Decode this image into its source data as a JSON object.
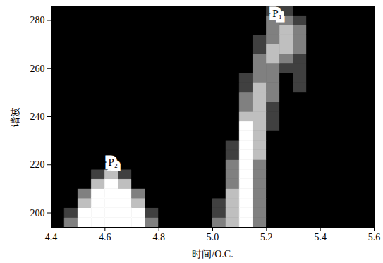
{
  "chart_data": {
    "type": "heatmap",
    "xlabel": "时间/O.C.",
    "ylabel": "谐波",
    "xlim": [
      4.4,
      5.6
    ],
    "ylim": [
      194,
      286
    ],
    "xticks": [
      4.4,
      4.6,
      4.8,
      {
        "value": 5,
        "label": "5.0"
      },
      5.2,
      5.4,
      5.6
    ],
    "yticks": [
      200,
      220,
      240,
      260,
      280
    ],
    "color": "#ffffff",
    "zlim": [
      0,
      4
    ],
    "x_bins": [
      4.4,
      4.45,
      4.5,
      4.55,
      4.6,
      4.65,
      4.7,
      4.75,
      4.8,
      4.85,
      4.9,
      4.95,
      5.0,
      5.05,
      5.1,
      5.15,
      5.2,
      5.25,
      5.3,
      5.35,
      5.4,
      5.45,
      5.5,
      5.55,
      5.6
    ],
    "y_bins": [
      194,
      198,
      202,
      206,
      210,
      214,
      218,
      222,
      226,
      230,
      234,
      238,
      242,
      246,
      250,
      254,
      258,
      262,
      266,
      270,
      274,
      278,
      282,
      286
    ],
    "cells": [
      [
        0,
        2,
        4,
        4,
        4,
        4,
        4,
        2,
        0,
        0,
        0,
        0,
        2,
        3,
        4,
        2,
        0,
        0,
        0,
        0,
        0,
        0,
        0,
        0
      ],
      [
        0,
        1,
        4,
        4,
        4,
        4,
        4,
        1,
        0,
        0,
        0,
        0,
        1,
        3,
        4,
        2,
        0,
        0,
        0,
        0,
        0,
        0,
        0,
        0
      ],
      [
        0,
        0,
        3,
        4,
        4,
        4,
        3,
        0,
        0,
        0,
        0,
        0,
        1,
        3,
        4,
        2,
        0,
        0,
        0,
        0,
        0,
        0,
        0,
        0
      ],
      [
        0,
        0,
        2,
        4,
        4,
        4,
        2,
        0,
        0,
        0,
        0,
        0,
        0,
        3,
        4,
        2,
        0,
        0,
        0,
        0,
        0,
        0,
        0,
        0
      ],
      [
        0,
        0,
        0,
        3,
        4,
        3,
        0,
        0,
        0,
        0,
        0,
        0,
        0,
        2,
        4,
        2,
        0,
        0,
        0,
        0,
        0,
        0,
        0,
        0
      ],
      [
        0,
        0,
        0,
        1,
        3,
        1,
        0,
        0,
        0,
        0,
        0,
        0,
        0,
        2,
        4,
        2,
        0,
        0,
        0,
        0,
        0,
        0,
        0,
        0
      ],
      [
        0,
        0,
        0,
        0,
        0,
        0,
        0,
        0,
        0,
        0,
        0,
        0,
        0,
        2,
        4,
        2,
        0,
        0,
        0,
        0,
        0,
        0,
        0,
        0
      ],
      [
        0,
        0,
        0,
        0,
        0,
        0,
        0,
        0,
        0,
        0,
        0,
        0,
        0,
        1,
        4,
        3,
        0,
        0,
        0,
        0,
        0,
        0,
        0,
        0
      ],
      [
        0,
        0,
        0,
        0,
        0,
        0,
        0,
        0,
        0,
        0,
        0,
        0,
        0,
        1,
        4,
        3,
        0,
        0,
        0,
        0,
        0,
        0,
        0,
        0
      ],
      [
        0,
        0,
        0,
        0,
        0,
        0,
        0,
        0,
        0,
        0,
        0,
        0,
        0,
        0,
        4,
        3,
        0,
        0,
        0,
        0,
        0,
        0,
        0,
        0
      ],
      [
        0,
        0,
        0,
        0,
        0,
        0,
        0,
        0,
        0,
        0,
        0,
        0,
        0,
        0,
        4,
        3,
        1,
        0,
        0,
        0,
        0,
        0,
        0,
        0
      ],
      [
        0,
        0,
        0,
        0,
        0,
        0,
        0,
        0,
        0,
        0,
        0,
        0,
        0,
        0,
        3,
        3,
        1,
        0,
        0,
        0,
        0,
        0,
        0,
        0
      ],
      [
        0,
        0,
        0,
        0,
        0,
        0,
        0,
        0,
        0,
        0,
        0,
        0,
        0,
        0,
        2,
        3,
        1,
        0,
        0,
        0,
        0,
        0,
        0,
        0
      ],
      [
        0,
        0,
        0,
        0,
        0,
        0,
        0,
        0,
        0,
        0,
        0,
        0,
        0,
        0,
        2,
        3,
        2,
        0,
        0,
        0,
        0,
        0,
        0,
        0
      ],
      [
        0,
        0,
        0,
        0,
        0,
        0,
        0,
        0,
        0,
        0,
        0,
        0,
        0,
        0,
        1,
        3,
        2,
        0,
        1,
        0,
        0,
        0,
        0,
        0
      ],
      [
        0,
        0,
        0,
        0,
        0,
        0,
        0,
        0,
        0,
        0,
        0,
        0,
        0,
        0,
        1,
        2,
        2,
        0,
        1,
        0,
        0,
        0,
        0,
        0
      ],
      [
        0,
        0,
        0,
        0,
        0,
        0,
        0,
        0,
        0,
        0,
        0,
        0,
        0,
        0,
        0,
        2,
        2,
        1,
        1,
        0,
        0,
        0,
        0,
        0
      ],
      [
        0,
        0,
        0,
        0,
        0,
        0,
        0,
        0,
        0,
        0,
        0,
        0,
        0,
        0,
        0,
        2,
        3,
        2,
        1,
        0,
        0,
        0,
        0,
        0
      ],
      [
        0,
        0,
        0,
        0,
        0,
        0,
        0,
        0,
        0,
        0,
        0,
        0,
        0,
        0,
        0,
        1,
        3,
        3,
        2,
        0,
        0,
        0,
        0,
        0
      ],
      [
        0,
        0,
        0,
        0,
        0,
        0,
        0,
        0,
        0,
        0,
        0,
        0,
        0,
        0,
        0,
        1,
        2,
        3,
        2,
        0,
        0,
        0,
        0,
        0
      ],
      [
        0,
        0,
        0,
        0,
        0,
        0,
        0,
        0,
        0,
        0,
        0,
        0,
        0,
        0,
        0,
        0,
        2,
        3,
        2,
        0,
        0,
        0,
        0,
        0
      ],
      [
        0,
        0,
        0,
        0,
        0,
        0,
        0,
        0,
        0,
        0,
        0,
        0,
        0,
        0,
        0,
        0,
        2,
        2,
        1,
        0,
        0,
        0,
        0,
        0
      ],
      [
        0,
        0,
        0,
        0,
        0,
        0,
        0,
        0,
        0,
        0,
        0,
        0,
        0,
        0,
        0,
        0,
        1,
        1,
        0,
        0,
        0,
        0,
        0,
        0
      ]
    ],
    "annotations": [
      {
        "text": "P₂",
        "x": 4.63,
        "y": 221
      },
      {
        "text": "P₁",
        "x": 5.24,
        "y": 283
      }
    ]
  }
}
